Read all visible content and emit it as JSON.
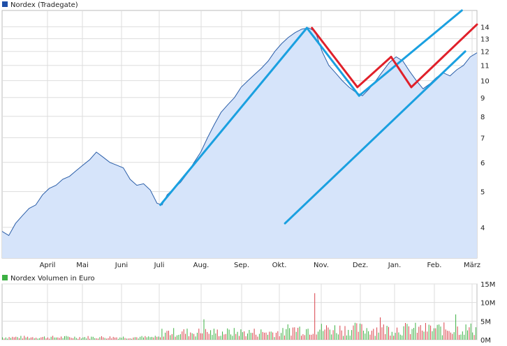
{
  "chart_data": [
    {
      "type": "area",
      "legend": {
        "label": "Nordex (Tradegate)",
        "color": "#1f4fa8"
      },
      "y_scale": "log",
      "ylim": [
        3.3,
        15.5
      ],
      "y_ticks": [
        4,
        5,
        6,
        7,
        8,
        9,
        10,
        11,
        12,
        13,
        14
      ],
      "x_ticks": [
        "April",
        "Mai",
        "Juni",
        "Juli",
        "Aug.",
        "Sep.",
        "Okt.",
        "Nov.",
        "Dez.",
        "Jan.",
        "Feb.",
        "März"
      ],
      "grid": true,
      "colors": {
        "line": "#2b5ea8",
        "fill": "#d6e4fa",
        "grid": "#dddddd",
        "trend_blue": "#1aa0e0",
        "trend_red": "#e0202a"
      },
      "series": [
        {
          "name": "Nordex (Tradegate)",
          "points": [
            [
              0,
              3.9
            ],
            [
              4,
              3.8
            ],
            [
              8,
              4.1
            ],
            [
              12,
              4.3
            ],
            [
              16,
              4.5
            ],
            [
              20,
              4.6
            ],
            [
              24,
              4.9
            ],
            [
              28,
              5.1
            ],
            [
              32,
              5.2
            ],
            [
              36,
              5.4
            ],
            [
              40,
              5.5
            ],
            [
              44,
              5.7
            ],
            [
              48,
              5.9
            ],
            [
              52,
              6.1
            ],
            [
              56,
              6.4
            ],
            [
              60,
              6.2
            ],
            [
              64,
              6.0
            ],
            [
              68,
              5.9
            ],
            [
              72,
              5.8
            ],
            [
              76,
              5.4
            ],
            [
              80,
              5.2
            ],
            [
              84,
              5.25
            ],
            [
              88,
              5.05
            ],
            [
              92,
              4.65
            ],
            [
              95,
              4.6
            ],
            [
              98,
              4.9
            ],
            [
              102,
              5.1
            ],
            [
              106,
              5.3
            ],
            [
              110,
              5.6
            ],
            [
              114,
              6.0
            ],
            [
              118,
              6.4
            ],
            [
              122,
              7.0
            ],
            [
              126,
              7.6
            ],
            [
              130,
              8.2
            ],
            [
              134,
              8.6
            ],
            [
              138,
              9.0
            ],
            [
              142,
              9.6
            ],
            [
              146,
              10.0
            ],
            [
              150,
              10.4
            ],
            [
              154,
              10.8
            ],
            [
              158,
              11.3
            ],
            [
              162,
              12.0
            ],
            [
              166,
              12.6
            ],
            [
              170,
              13.1
            ],
            [
              174,
              13.5
            ],
            [
              178,
              13.8
            ],
            [
              182,
              13.9
            ],
            [
              186,
              13.6
            ],
            [
              190,
              12.0
            ],
            [
              194,
              11.0
            ],
            [
              198,
              10.5
            ],
            [
              202,
              10.0
            ],
            [
              206,
              9.6
            ],
            [
              210,
              9.3
            ],
            [
              214,
              9.1
            ],
            [
              218,
              9.5
            ],
            [
              222,
              10.0
            ],
            [
              226,
              10.6
            ],
            [
              230,
              11.2
            ],
            [
              234,
              11.6
            ],
            [
              238,
              11.3
            ],
            [
              242,
              10.6
            ],
            [
              246,
              10.0
            ],
            [
              250,
              9.5
            ],
            [
              254,
              9.8
            ],
            [
              258,
              10.2
            ],
            [
              262,
              10.5
            ],
            [
              266,
              10.3
            ],
            [
              270,
              10.7
            ],
            [
              274,
              11.0
            ],
            [
              278,
              11.6
            ],
            [
              282,
              11.9
            ]
          ],
          "marker": "line"
        }
      ],
      "trendlines": [
        {
          "color": "blue",
          "from": [
            94,
            4.6
          ],
          "to": [
            181,
            13.9
          ]
        },
        {
          "color": "blue",
          "from": [
            181,
            13.9
          ],
          "to": [
            212,
            9.1
          ]
        },
        {
          "color": "blue",
          "from": [
            212,
            9.1
          ],
          "to": [
            273,
            15.5
          ]
        },
        {
          "color": "blue",
          "from": [
            168,
            4.1
          ],
          "to": [
            275,
            12.0
          ]
        },
        {
          "color": "red",
          "from": [
            184,
            13.9
          ],
          "to": [
            211,
            9.6
          ]
        },
        {
          "color": "red",
          "from": [
            211,
            9.6
          ],
          "to": [
            231,
            11.6
          ]
        },
        {
          "color": "red",
          "from": [
            231,
            11.6
          ],
          "to": [
            243,
            9.6
          ]
        },
        {
          "color": "red",
          "from": [
            243,
            9.6
          ],
          "to": [
            282,
            14.2
          ]
        }
      ]
    },
    {
      "type": "bar",
      "legend": {
        "label": "Nordex Volumen in Euro",
        "color": "#3cb043"
      },
      "ylim": [
        0,
        15
      ],
      "y_ticks": [
        "0M",
        "5M",
        "10M",
        "15M"
      ],
      "y_tick_values": [
        0,
        5,
        10,
        15
      ],
      "x_ticks": [
        "April",
        "Mai",
        "Juni",
        "Juli",
        "Aug.",
        "Sep.",
        "Okt.",
        "Nov.",
        "Dez.",
        "Jan.",
        "Feb.",
        "März"
      ],
      "grid": true,
      "colors": {
        "up": "#3cb043",
        "down": "#d9434b"
      },
      "highlights": [
        {
          "i": 186,
          "v": 12.5,
          "color": "red"
        },
        {
          "i": 270,
          "v": 6.8,
          "color": "green"
        },
        {
          "i": 225,
          "v": 6.0,
          "color": "red"
        },
        {
          "i": 120,
          "v": 5.5,
          "color": "green"
        }
      ]
    }
  ]
}
